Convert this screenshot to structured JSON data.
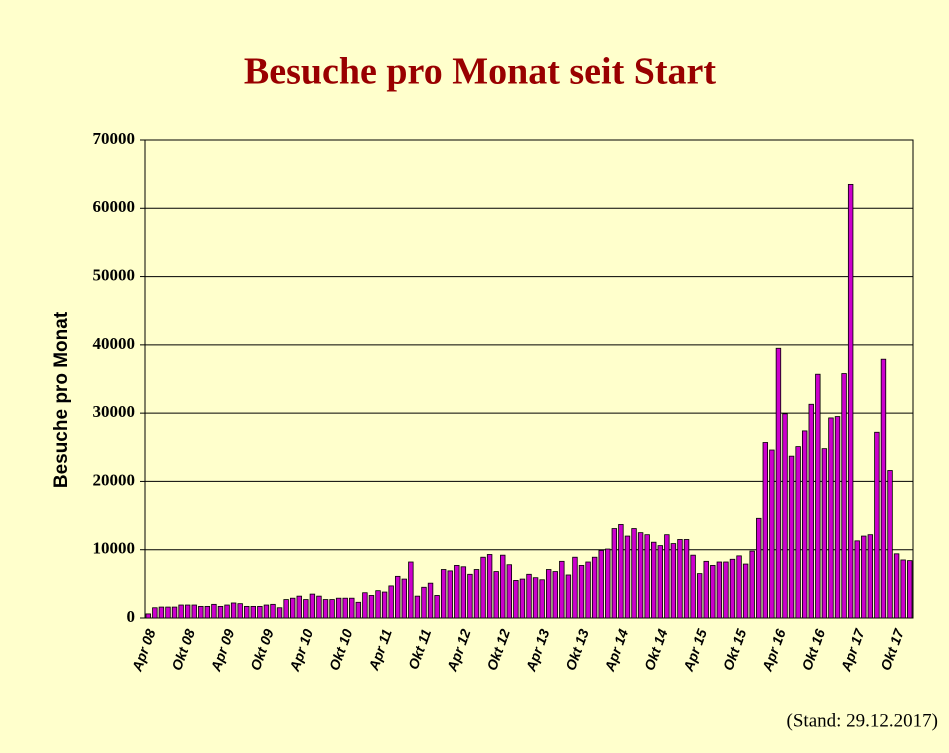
{
  "chart_data": {
    "type": "bar",
    "title": "Besuche pro Monat seit Start",
    "ylabel": "Besuche pro Monat",
    "note": "(Stand: 29.12.2017)",
    "color": "#cc00cc",
    "grid": true,
    "ylim": [
      0,
      70000
    ],
    "yticks": [
      0,
      10000,
      20000,
      30000,
      40000,
      50000,
      60000,
      70000
    ],
    "categories": [
      "Apr 08",
      null,
      null,
      null,
      null,
      null,
      "Okt 08",
      null,
      null,
      null,
      null,
      null,
      "Apr 09",
      null,
      null,
      null,
      null,
      null,
      "Okt 09",
      null,
      null,
      null,
      null,
      null,
      "Apr 10",
      null,
      null,
      null,
      null,
      null,
      "Okt 10",
      null,
      null,
      null,
      null,
      null,
      "Apr 11",
      null,
      null,
      null,
      null,
      null,
      "Okt 11",
      null,
      null,
      null,
      null,
      null,
      "Apr 12",
      null,
      null,
      null,
      null,
      null,
      "Okt 12",
      null,
      null,
      null,
      null,
      null,
      "Apr 13",
      null,
      null,
      null,
      null,
      null,
      "Okt 13",
      null,
      null,
      null,
      null,
      null,
      "Apr 14",
      null,
      null,
      null,
      null,
      null,
      "Okt 14",
      null,
      null,
      null,
      null,
      null,
      "Apr 15",
      null,
      null,
      null,
      null,
      null,
      "Okt 15",
      null,
      null,
      null,
      null,
      null,
      "Apr 16",
      null,
      null,
      null,
      null,
      null,
      "Okt 16",
      null,
      null,
      null,
      null,
      null,
      "Apr 17",
      null,
      null,
      null,
      null,
      null,
      "Okt 17",
      null,
      null
    ],
    "values": [
      600,
      1500,
      1600,
      1600,
      1600,
      1900,
      1900,
      1900,
      1700,
      1700,
      2000,
      1700,
      1900,
      2200,
      2100,
      1700,
      1700,
      1700,
      1900,
      2000,
      1500,
      2700,
      2900,
      3200,
      2700,
      3500,
      3200,
      2700,
      2700,
      2900,
      2900,
      2900,
      2300,
      3700,
      3300,
      4000,
      3800,
      4700,
      6100,
      5700,
      8200,
      3200,
      4500,
      5100,
      3300,
      7100,
      6900,
      7700,
      7500,
      6400,
      7100,
      8900,
      9300,
      6800,
      9200,
      7800,
      5500,
      5700,
      6400,
      5900,
      5600,
      7100,
      6800,
      8300,
      6300,
      8900,
      7700,
      8200,
      8900,
      9900,
      10100,
      13100,
      13700,
      12000,
      13100,
      12500,
      12200,
      11100,
      10600,
      12200,
      10900,
      11500,
      11500,
      9200,
      6500,
      8300,
      7700,
      8200,
      8200,
      8600,
      9100,
      7900,
      9800,
      14600,
      25700,
      24600,
      39500,
      29900,
      23700,
      25100,
      27400,
      31300,
      35700,
      24800,
      29300,
      29500,
      35800,
      63500,
      11300,
      12000,
      12200,
      27200,
      37900,
      21600,
      9400,
      8500,
      8400
    ]
  }
}
